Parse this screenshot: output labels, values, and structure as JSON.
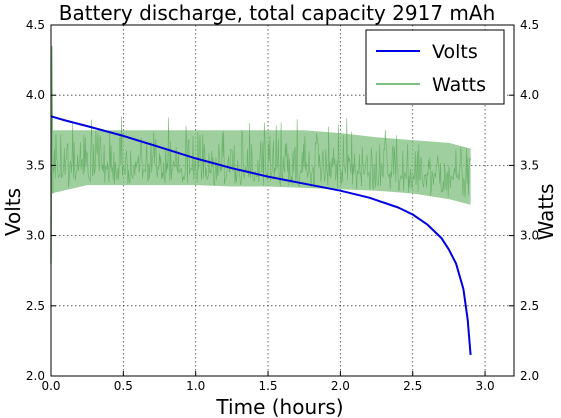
{
  "chart_data": {
    "type": "line",
    "title": "Battery discharge, total capacity 2917 mAh",
    "xlabel": "Time (hours)",
    "ylabel_left": "Volts",
    "ylabel_right": "Watts",
    "xlim": [
      0,
      3.2
    ],
    "ylim_left": [
      2.0,
      4.5
    ],
    "ylim_right": [
      2.0,
      4.5
    ],
    "x_ticks": [
      "0.0",
      "0.5",
      "1.0",
      "1.5",
      "2.0",
      "2.5",
      "3.0"
    ],
    "y_ticks_left": [
      "2.0",
      "2.5",
      "3.0",
      "3.5",
      "4.0",
      "4.5"
    ],
    "y_ticks_right": [
      "2.0",
      "2.5",
      "3.0",
      "3.5",
      "4.0",
      "4.5"
    ],
    "grid": true,
    "legend_position": "top-right",
    "series": [
      {
        "name": "Volts",
        "color": "#0000e0",
        "axis": "left",
        "x": [
          0.0,
          0.1,
          0.25,
          0.5,
          0.75,
          1.0,
          1.25,
          1.5,
          1.75,
          2.0,
          2.2,
          2.4,
          2.5,
          2.6,
          2.7,
          2.75,
          2.8,
          2.85,
          2.88,
          2.9
        ],
        "y": [
          3.85,
          3.82,
          3.78,
          3.71,
          3.63,
          3.55,
          3.48,
          3.42,
          3.37,
          3.32,
          3.27,
          3.2,
          3.15,
          3.08,
          2.98,
          2.9,
          2.8,
          2.62,
          2.4,
          2.15
        ]
      },
      {
        "name": "Watts",
        "color": "#7fbf7f",
        "axis": "right",
        "x": [
          0.0,
          0.25,
          0.5,
          0.75,
          1.0,
          1.25,
          1.5,
          1.75,
          2.0,
          2.25,
          2.5,
          2.75,
          2.9
        ],
        "y_low": [
          3.3,
          3.36,
          3.36,
          3.36,
          3.36,
          3.35,
          3.35,
          3.34,
          3.33,
          3.32,
          3.3,
          3.26,
          3.22
        ],
        "y_high": [
          3.75,
          3.75,
          3.75,
          3.75,
          3.75,
          3.75,
          3.75,
          3.75,
          3.73,
          3.7,
          3.68,
          3.66,
          3.62
        ],
        "y_mean": [
          3.45,
          3.47,
          3.47,
          3.47,
          3.47,
          3.46,
          3.46,
          3.45,
          3.45,
          3.44,
          3.43,
          3.42,
          3.4
        ]
      }
    ]
  }
}
